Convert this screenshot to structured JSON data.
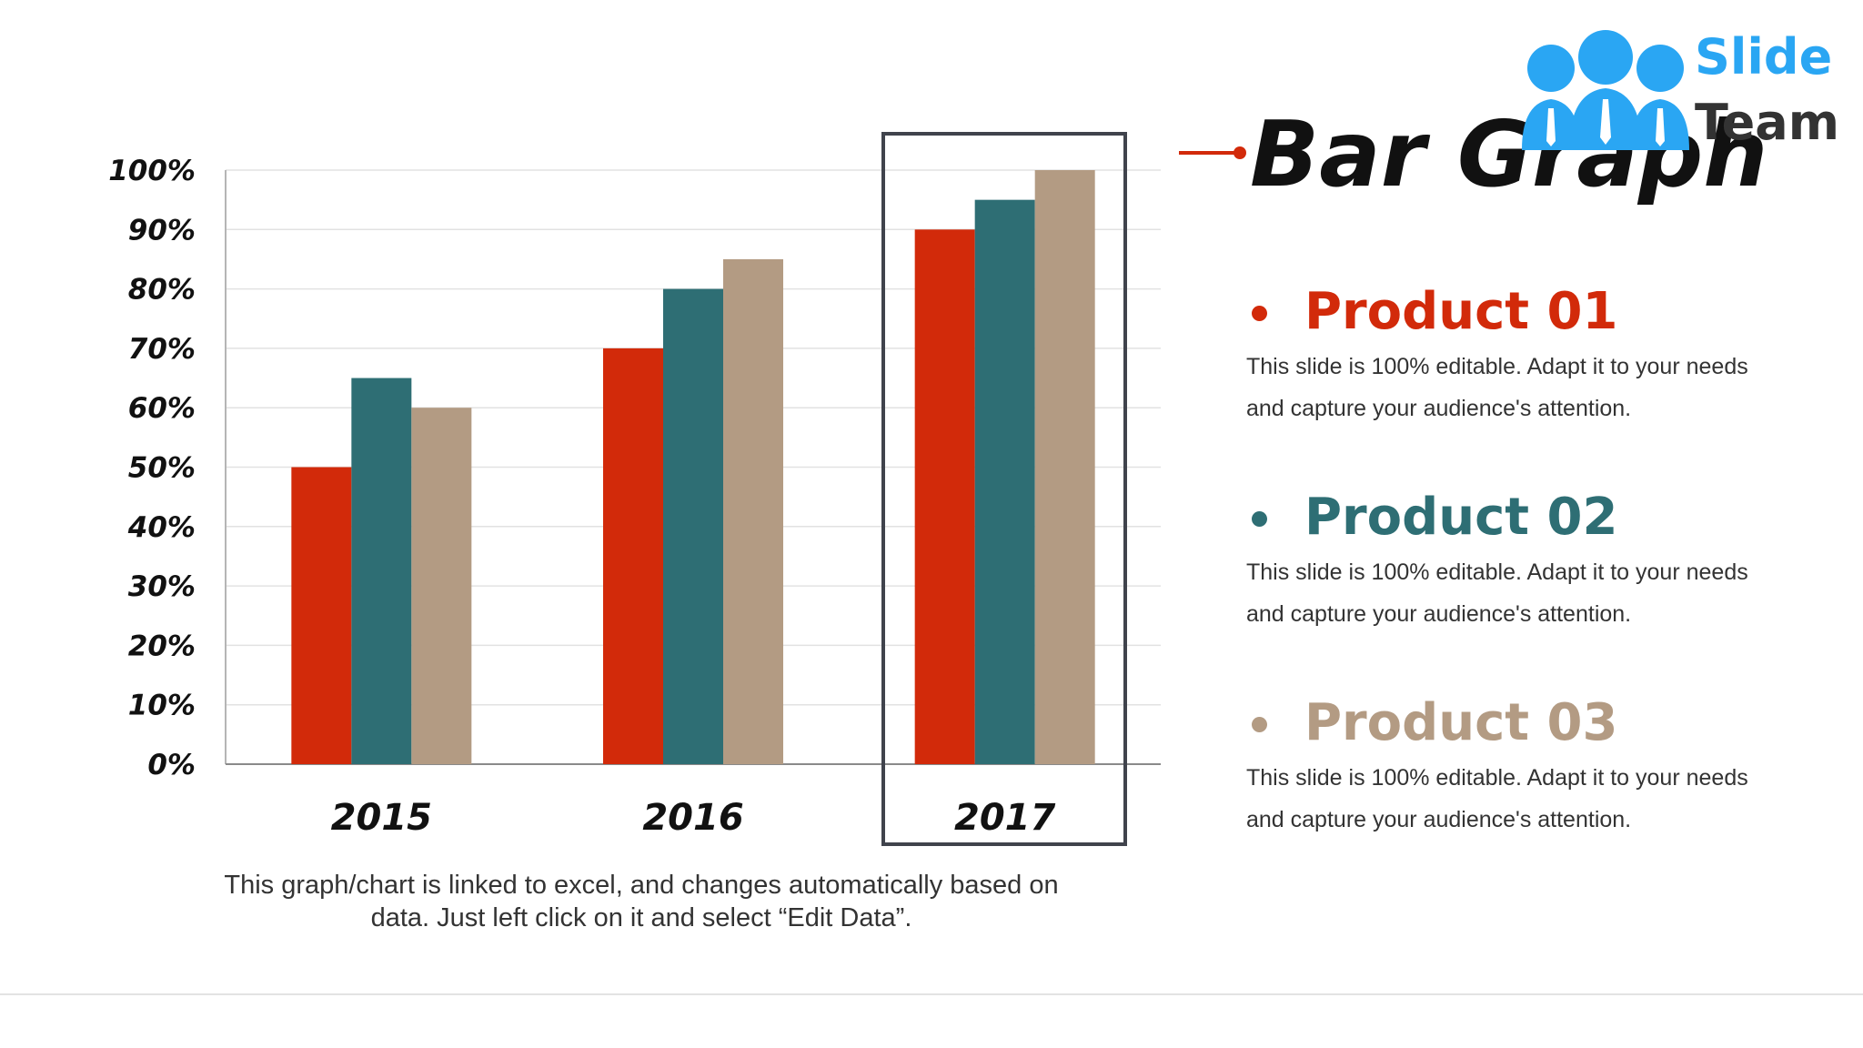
{
  "slide": {
    "title": "Bar Graph",
    "logo": {
      "line1": "Slide",
      "line2": "Team"
    },
    "note_line1": "This graph/chart is linked to excel, and changes automatically based on",
    "note_line2": "data. Just left click on it and select “Edit Data”.",
    "products": [
      {
        "name": "Product 01",
        "color": "#d22a0a",
        "description": "This slide is 100% editable. Adapt it to your needs and capture your audience's attention."
      },
      {
        "name": "Product 02",
        "color": "#2e6e74",
        "description": "This slide is 100% editable. Adapt it to your needs and capture your audience's attention."
      },
      {
        "name": "Product 03",
        "color": "#b39b83",
        "description": "This slide is 100% editable. Adapt it to your needs and capture your audience's attention."
      }
    ],
    "highlighted_category": "2017"
  },
  "chart_data": {
    "type": "bar",
    "categories": [
      "2015",
      "2016",
      "2017"
    ],
    "series": [
      {
        "values": [
          50,
          70,
          90
        ],
        "color": "#d22a0a"
      },
      {
        "values": [
          65,
          80,
          95
        ],
        "color": "#2e6e74"
      },
      {
        "values": [
          60,
          85,
          100
        ],
        "color": "#b39b83"
      }
    ],
    "ylim": [
      0,
      100
    ],
    "yticks": [
      "0%",
      "10%",
      "20%",
      "30%",
      "40%",
      "50%",
      "60%",
      "70%",
      "80%",
      "90%",
      "100%"
    ],
    "grid": true,
    "legend": "none"
  }
}
